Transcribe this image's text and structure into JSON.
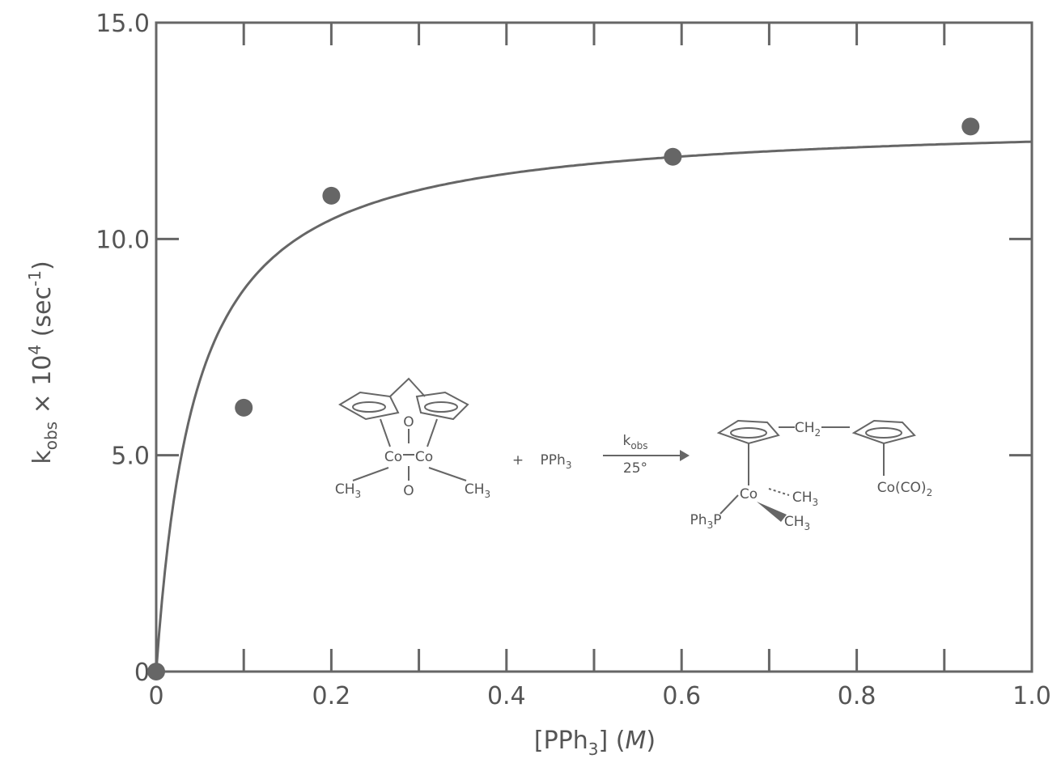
{
  "chart_data": {
    "type": "scatter",
    "xlabel": {
      "pre": "[PPh",
      "sub": "3",
      "post": "] (",
      "unit": "M",
      "close": ")"
    },
    "ylabel": {
      "k": "k",
      "ksub": "obs",
      "mid": " × 10",
      "exp": "4",
      "unit": " (sec",
      "unitexp": "-1",
      "close": ")"
    },
    "xlim": [
      0,
      1.0
    ],
    "ylim": [
      0,
      15.0
    ],
    "x_ticks": [
      0,
      0.2,
      0.4,
      0.6,
      0.8,
      1.0
    ],
    "x_tick_labels": [
      "0",
      "0.2",
      "0.4",
      "0.6",
      "0.8",
      "1.0"
    ],
    "y_ticks": [
      0,
      5.0,
      10.0,
      15.0
    ],
    "y_tick_labels": [
      "0",
      "5.0",
      "10.0",
      "15.0"
    ],
    "points": [
      {
        "x": 0.0,
        "y": 0.0
      },
      {
        "x": 0.1,
        "y": 6.1
      },
      {
        "x": 0.2,
        "y": 11.0
      },
      {
        "x": 0.59,
        "y": 11.9
      },
      {
        "x": 0.93,
        "y": 12.6
      }
    ],
    "fit_curve": {
      "form": "saturation",
      "kmax": 12.8,
      "K": 0.045,
      "x_range": [
        0,
        1.0
      ]
    },
    "grid": false,
    "legend": "none"
  },
  "scheme": {
    "reactant": {
      "carbonyl_top": "O",
      "carbonyl_bottom": "O",
      "metal_left": "Co",
      "metal_right": "Co",
      "ch3_left": "CH",
      "ch3_left_sub": "3",
      "ch3_right": "CH",
      "ch3_right_sub": "3"
    },
    "plus": "+",
    "reagent": {
      "text": "PPh",
      "sub": "3"
    },
    "arrow_top": {
      "text": "k",
      "sub": "obs"
    },
    "arrow_bottom": "25°",
    "product": {
      "ch2": "CH",
      "ch2_sub": "2",
      "metal": "Co",
      "me1": "CH",
      "me1_sub": "3",
      "me2": "CH",
      "me2_sub": "3",
      "phos": "Ph",
      "phos_sub": "3",
      "phos_tail": "P",
      "co_unit": "Co(CO)",
      "co_sub": "2"
    }
  },
  "colors": {
    "ink": "#555555",
    "point": "#666666"
  }
}
